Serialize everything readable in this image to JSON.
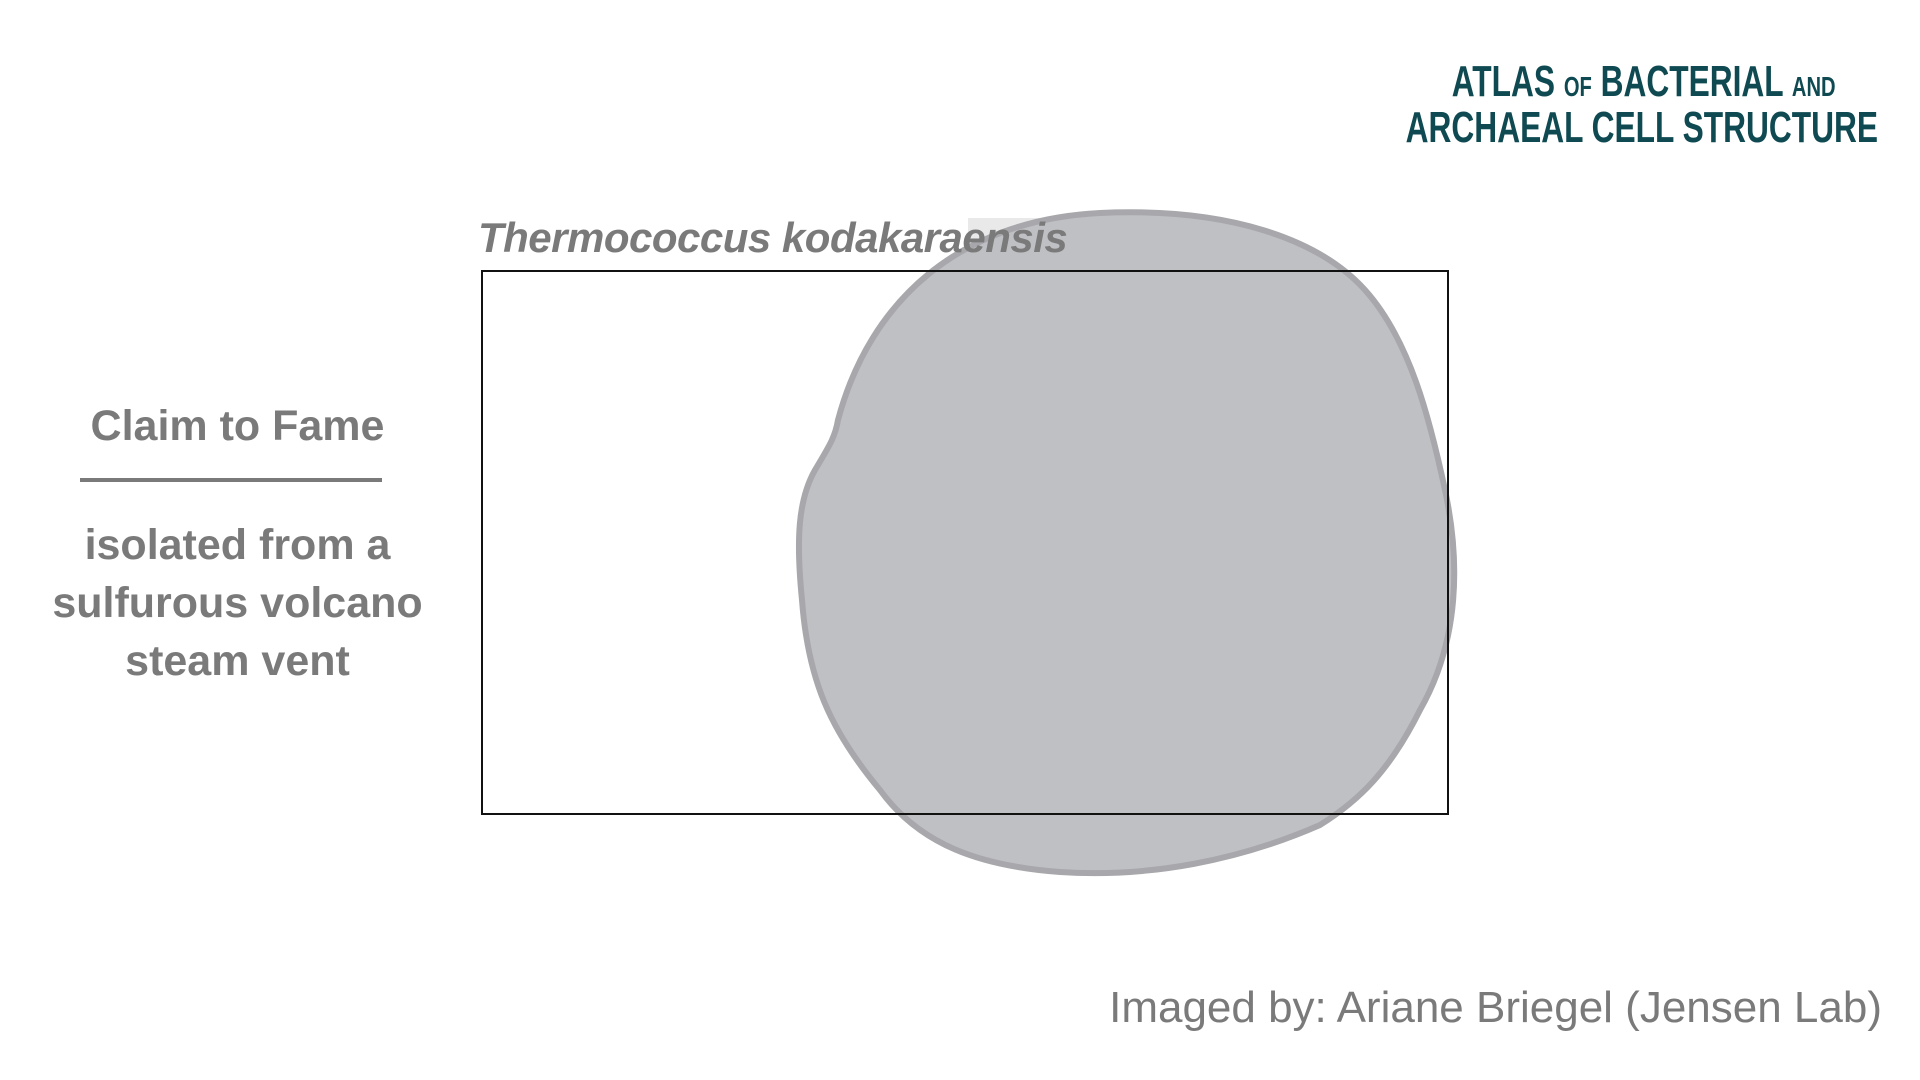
{
  "logo": {
    "line1_big": "A",
    "line1_rest": "TLAS",
    "line1_of": "OF",
    "line1_word": "BACTERIAL",
    "line1_and": "AND",
    "line2_word1": "ARCHAEAL",
    "line2_word2": "CELL",
    "line2_word3": "STRUCTURE"
  },
  "species_name": "Thermococcus kodakaraensis",
  "claim": {
    "title": "Claim to Fame",
    "line1": "isolated from a",
    "line2": "sulfurous volcano",
    "line3": "steam vent"
  },
  "credit": "Imaged by: Ariane Briegel (Jensen Lab)",
  "colors": {
    "cell_fill": "#bfc0c4",
    "cell_stroke": "#a8a8ac",
    "text_gray": "#7a7a7a",
    "logo_teal": "#0f4a52"
  }
}
